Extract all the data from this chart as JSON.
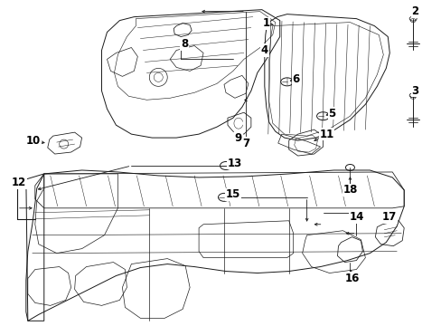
{
  "background_color": "#ffffff",
  "line_color": "#1a1a1a",
  "fig_width": 4.89,
  "fig_height": 3.6,
  "dpi": 100,
  "label_fontsize": 8.5,
  "label_color": "#000000"
}
